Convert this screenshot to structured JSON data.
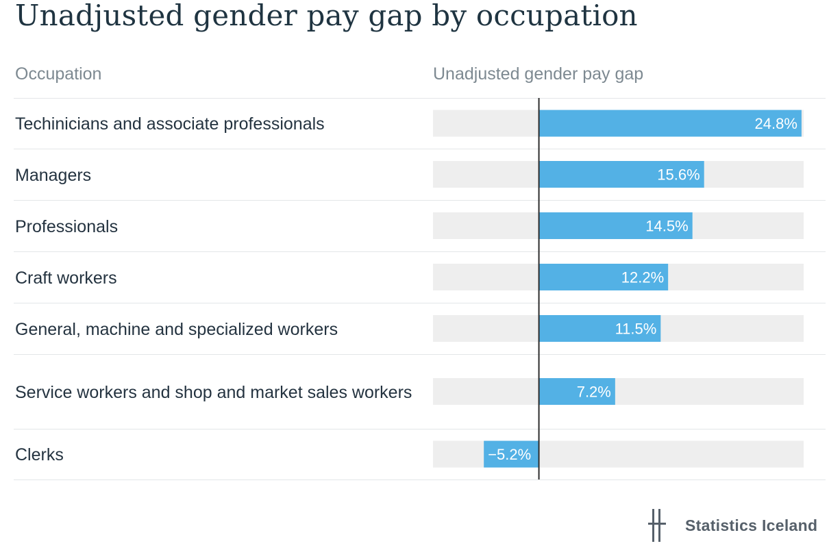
{
  "title": "Unadjusted gender pay gap by occupation",
  "headers": {
    "occupation": "Occupation",
    "gap": "Unadjusted gender pay gap"
  },
  "branding": {
    "name": "Statistics Iceland"
  },
  "colors": {
    "bar": "#53b1e5",
    "track": "#eeeeee",
    "axis": "#2c2c2c",
    "label_on_bar": "#ffffff"
  },
  "chart_data": {
    "type": "bar",
    "orientation": "horizontal",
    "title": "Unadjusted gender pay gap by occupation",
    "xlabel": "Unadjusted gender pay gap",
    "ylabel": "Occupation",
    "xlim": [
      -10,
      25
    ],
    "categories": [
      "Techinicians and associate professionals",
      "Managers",
      "Professionals",
      "Craft workers",
      "General, machine and specialized workers",
      "Service workers and shop and market sales workers",
      "Clerks"
    ],
    "values": [
      24.8,
      15.6,
      14.5,
      12.2,
      11.5,
      7.2,
      -5.2
    ],
    "value_labels": [
      "24.8%",
      "15.6%",
      "14.5%",
      "12.2%",
      "11.5%",
      "7.2%",
      "−5.2%"
    ],
    "unit": "%"
  }
}
